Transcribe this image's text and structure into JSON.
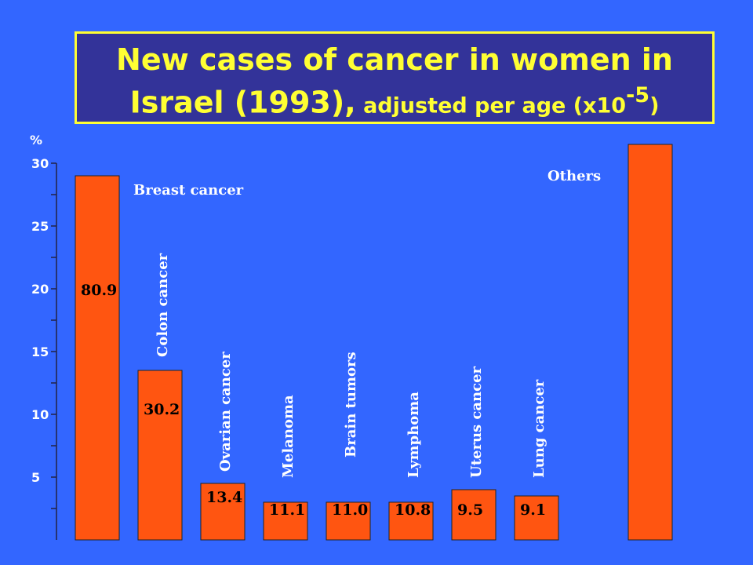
{
  "title": {
    "line1": "New cases of cancer in women in",
    "line2_main": "Israel (1993),",
    "line2_small": " adjusted per age (x10",
    "line2_exp": "-5",
    "line2_end": ")"
  },
  "chart_data": {
    "type": "bar",
    "title": "New cases of cancer in women in Israel (1993), adjusted per age (x10-5)",
    "ylabel": "%",
    "ylim": [
      0,
      30
    ],
    "yticks": [
      "5",
      "10",
      "15",
      "20",
      "25",
      "30"
    ],
    "categories": [
      "Breast cancer",
      "Colon cancer",
      "Ovarian cancer",
      "Melanoma",
      "Brain tumors",
      "Lymphoma",
      "Uterus cancer",
      "Lung cancer",
      "Others"
    ],
    "percent_values": [
      29,
      13.5,
      4.5,
      3,
      3,
      3,
      4,
      3.5,
      31.5
    ],
    "labels": [
      "80.9",
      "30.2",
      "13.4",
      "11.1",
      "11.0",
      "10.8",
      "9.5",
      "9.1",
      ""
    ],
    "colors": {
      "bar": "#ff5511",
      "background": "#3366ff",
      "title_bg": "#333399",
      "title_text": "#ffff33"
    }
  }
}
